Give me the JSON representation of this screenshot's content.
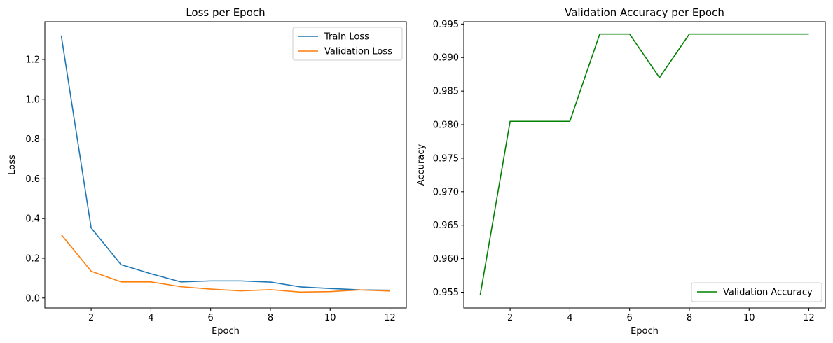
{
  "chart_data": [
    {
      "type": "line",
      "title": "Loss per Epoch",
      "xlabel": "Epoch",
      "ylabel": "Loss",
      "xlim": [
        0.45,
        12.55
      ],
      "ylim": [
        -0.05,
        1.39
      ],
      "xticks": [
        2,
        4,
        6,
        8,
        10,
        12
      ],
      "xtick_labels": [
        "2",
        "4",
        "6",
        "8",
        "10",
        "12"
      ],
      "yticks": [
        0.0,
        0.2,
        0.4,
        0.6,
        0.8,
        1.0,
        1.2
      ],
      "ytick_labels": [
        "0.0",
        "0.2",
        "0.4",
        "0.6",
        "0.8",
        "1.0",
        "1.2"
      ],
      "grid": false,
      "legend_position": "top-right",
      "x": [
        1,
        2,
        3,
        4,
        5,
        6,
        7,
        8,
        9,
        10,
        11,
        12
      ],
      "series": [
        {
          "name": "Train Loss",
          "color": "#1f77b4",
          "values": [
            1.32,
            0.353,
            0.168,
            0.122,
            0.081,
            0.086,
            0.086,
            0.08,
            0.056,
            0.048,
            0.041,
            0.039
          ]
        },
        {
          "name": "Validation Loss",
          "color": "#ff7f0e",
          "values": [
            0.319,
            0.135,
            0.081,
            0.081,
            0.057,
            0.045,
            0.036,
            0.042,
            0.03,
            0.032,
            0.041,
            0.035
          ]
        }
      ]
    },
    {
      "type": "line",
      "title": "Validation Accuracy per Epoch",
      "xlabel": "Epoch",
      "ylabel": "Accuracy",
      "xlim": [
        0.45,
        12.55
      ],
      "ylim": [
        0.95265,
        0.99535
      ],
      "xticks": [
        2,
        4,
        6,
        8,
        10,
        12
      ],
      "xtick_labels": [
        "2",
        "4",
        "6",
        "8",
        "10",
        "12"
      ],
      "yticks": [
        0.955,
        0.96,
        0.965,
        0.97,
        0.975,
        0.98,
        0.985,
        0.99,
        0.995
      ],
      "ytick_labels": [
        "0.955",
        "0.960",
        "0.965",
        "0.970",
        "0.975",
        "0.980",
        "0.985",
        "0.990",
        "0.995"
      ],
      "grid": false,
      "legend_position": "bottom-right",
      "x": [
        1,
        2,
        3,
        4,
        5,
        6,
        7,
        8,
        9,
        10,
        11,
        12
      ],
      "series": [
        {
          "name": "Validation Accuracy",
          "color": "#008000",
          "values": [
            0.9546,
            0.9805,
            0.9805,
            0.9805,
            0.9935,
            0.9935,
            0.987,
            0.9935,
            0.9935,
            0.9935,
            0.9935,
            0.9935
          ]
        }
      ]
    }
  ]
}
